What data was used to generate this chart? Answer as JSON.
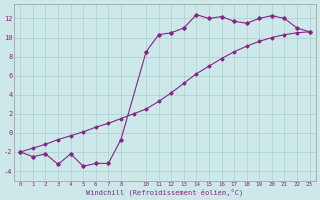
{
  "xlabel": "Windchill (Refroidissement éolien,°C)",
  "background_color": "#cce8e8",
  "line_color": "#882288",
  "grid_color": "#aad0d0",
  "xlim": [
    -0.5,
    23.5
  ],
  "ylim": [
    -5.0,
    13.5
  ],
  "xticks": [
    0,
    1,
    2,
    3,
    4,
    5,
    6,
    7,
    8,
    10,
    11,
    12,
    13,
    14,
    15,
    16,
    17,
    18,
    19,
    20,
    21,
    22,
    23
  ],
  "yticks": [
    -4,
    -2,
    0,
    2,
    4,
    6,
    8,
    10,
    12
  ],
  "curve1_x": [
    0,
    1,
    2,
    3,
    4,
    5,
    6,
    7,
    8,
    10,
    11,
    12,
    13,
    14,
    15,
    16,
    17,
    18,
    19,
    20,
    21,
    22,
    23
  ],
  "curve1_y": [
    -2.0,
    -2.5,
    -2.2,
    -3.3,
    -2.2,
    -3.5,
    -3.2,
    -3.2,
    -0.7,
    8.5,
    10.3,
    10.5,
    11.0,
    12.4,
    12.0,
    12.2,
    11.7,
    11.5,
    12.0,
    12.3,
    12.0,
    11.0,
    10.6
  ],
  "curve2_x": [
    0,
    1,
    2,
    3,
    4,
    5,
    6,
    7,
    8,
    9,
    10,
    11,
    12,
    13,
    14,
    15,
    16,
    17,
    18,
    19,
    20,
    21,
    22,
    23
  ],
  "curve2_y": [
    -2.0,
    -1.6,
    -1.2,
    -0.7,
    -0.3,
    0.1,
    0.6,
    1.0,
    1.5,
    2.0,
    2.5,
    3.3,
    4.2,
    5.2,
    6.2,
    7.0,
    7.8,
    8.5,
    9.1,
    9.6,
    10.0,
    10.3,
    10.5,
    10.6
  ]
}
